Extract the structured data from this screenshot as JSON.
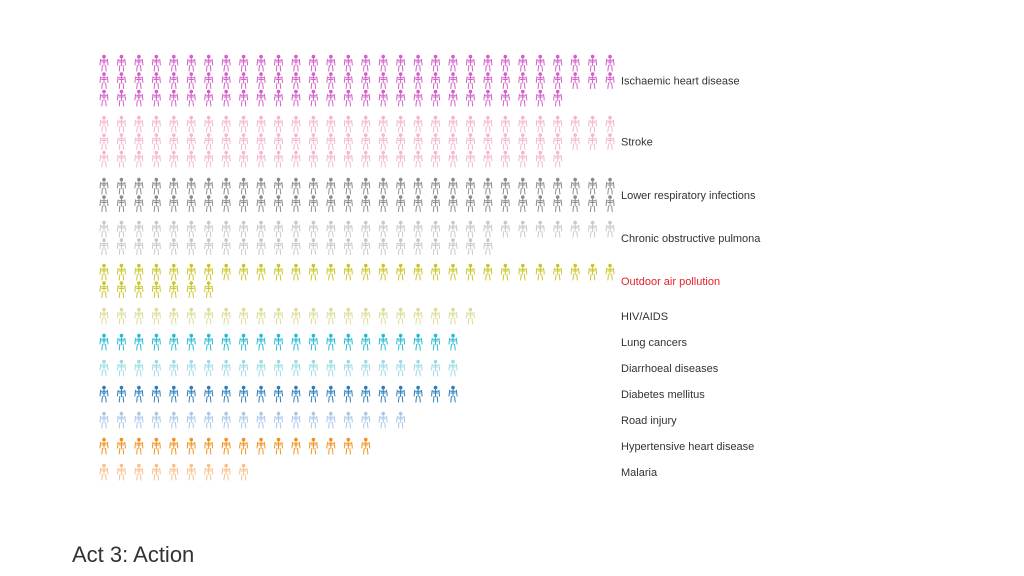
{
  "section_heading": "Act 3: Action",
  "icon_shape": "skeleton-icon",
  "highlight_color": "#e8202a",
  "chart_data": {
    "type": "pictogram",
    "title": "",
    "xlabel": "",
    "ylabel": "",
    "unit_icon": "skeleton",
    "grid": false,
    "categories": [
      {
        "name": "Ischaemic heart disease",
        "icons": 87,
        "color": "#d35fc8",
        "active": false
      },
      {
        "name": "Stroke",
        "icons": 87,
        "color": "#f4b6d2",
        "active": false
      },
      {
        "name": "Lower respiratory infections",
        "icons": 60,
        "color": "#8c8c8c",
        "active": false
      },
      {
        "name": "Chronic obstructive pulmona",
        "icons": 53,
        "color": "#c8c8c8",
        "active": false
      },
      {
        "name": "Outdoor air pollution",
        "icons": 37,
        "color": "#c9c62a",
        "active": true
      },
      {
        "name": "HIV/AIDS",
        "icons": 22,
        "color": "#dddc95",
        "active": false
      },
      {
        "name": "Lung cancers",
        "icons": 21,
        "color": "#27bcd0",
        "active": false
      },
      {
        "name": "Diarrhoeal diseases",
        "icons": 21,
        "color": "#9ddbe6",
        "active": false
      },
      {
        "name": "Diabetes mellitus",
        "icons": 21,
        "color": "#2c7fbb",
        "active": false
      },
      {
        "name": "Road injury",
        "icons": 18,
        "color": "#a9c8e8",
        "active": false
      },
      {
        "name": "Hypertensive heart disease",
        "icons": 16,
        "color": "#f3921f",
        "active": false
      },
      {
        "name": "Malaria",
        "icons": 9,
        "color": "#f9c18a",
        "active": false
      }
    ]
  }
}
